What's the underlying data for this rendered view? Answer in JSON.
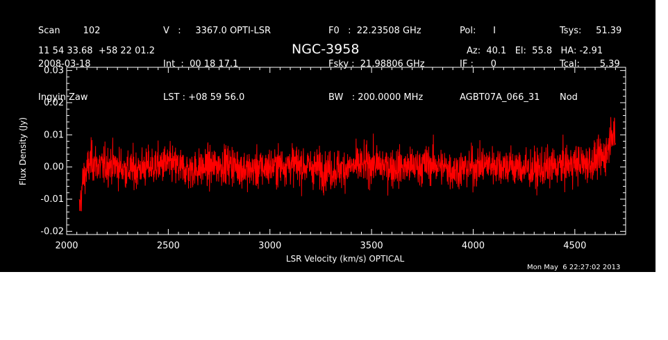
{
  "header": {
    "col1": [
      "Scan        102",
      "2008-03-18",
      "Ingyin Zaw"
    ],
    "col2": [
      "V   :     3367.0 OPTI-LSR",
      "Int  :  00 18 17.1",
      "LST : +08 59 56.0"
    ],
    "col3": [
      "F0   :  22.23508 GHz",
      "Fsky :  21.98806 GHz",
      "BW   : 200.0000 MHz"
    ],
    "col4": [
      "Pol:      I",
      "IF :      0",
      "AGBT07A_066_31"
    ],
    "col5": [
      "Tsys:     51.39",
      "Tcal:       5.39",
      "Nod"
    ],
    "coords": "11 54 33.68  +58 22 01.2",
    "source": "NGC-3958",
    "azel": "Az:  40.1   El:  55.8   HA: -2.91"
  },
  "footer": {
    "timestamp": "Mon May  6 22:27:02 2013"
  },
  "colors": {
    "background": "#000000",
    "axes": "#ffffff",
    "trace": "#ff0000"
  },
  "chart_data": {
    "type": "line",
    "xlabel": "LSR Velocity (km/s) OPTICAL",
    "ylabel": "Flux Density (Jy)",
    "xlim": [
      2000,
      4750
    ],
    "ylim": [
      -0.021,
      0.031
    ],
    "xticks": [
      2000,
      2500,
      3000,
      3500,
      4000,
      4500
    ],
    "xtick_labels": [
      "2000",
      "2500",
      "3000",
      "3500",
      "4000",
      "4500"
    ],
    "yticks": [
      -0.02,
      -0.01,
      0.0,
      0.01,
      0.02,
      0.03
    ],
    "ytick_labels": [
      "-0.02",
      "-0.01",
      "0.00",
      "0.01",
      "0.02",
      "0.03"
    ],
    "grid": false,
    "series": [
      {
        "x": [
          2062,
          2080,
          2120,
          2170,
          2220,
          2300,
          2400,
          2500,
          2600,
          2700,
          2800,
          2900,
          3000,
          3100,
          3200,
          3300,
          3400,
          3500,
          3600,
          3700,
          3800,
          3900,
          4000,
          4100,
          4200,
          4300,
          4400,
          4500,
          4560,
          4600,
          4640,
          4660,
          4670,
          4680,
          4690,
          4700
        ],
        "y": [
          -0.014,
          -0.004,
          0.002,
          0.0,
          0.001,
          -0.001,
          0.0,
          0.001,
          -0.001,
          0.0,
          0.001,
          -0.001,
          0.0,
          0.001,
          0.0,
          -0.001,
          0.0,
          0.001,
          0.0,
          0.0,
          0.001,
          -0.001,
          0.0,
          0.001,
          0.0,
          -0.001,
          0.0,
          0.001,
          0.001,
          0.002,
          0.003,
          0.005,
          0.008,
          0.012,
          0.011,
          0.006
        ],
        "noise_rms": 0.005
      }
    ]
  }
}
